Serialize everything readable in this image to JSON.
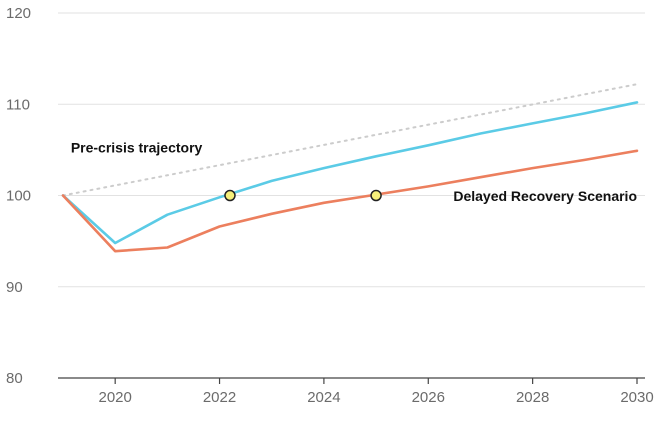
{
  "chart_data": {
    "type": "line",
    "title": "",
    "xlabel": "",
    "ylabel": "",
    "xlim": [
      2019,
      2030
    ],
    "ylim": [
      80,
      120
    ],
    "x_ticks": [
      "2020",
      "2022",
      "2024",
      "2026",
      "2028",
      "2030"
    ],
    "y_ticks": [
      "80",
      "90",
      "100",
      "110",
      "120"
    ],
    "grid": "horizontal",
    "legend": "none",
    "series": [
      {
        "key": "pre_crisis",
        "color": "#cccccc",
        "dashed": true,
        "points": [
          [
            2019,
            100
          ],
          [
            2030,
            112.2
          ]
        ]
      },
      {
        "key": "blue",
        "color": "#5bcbe6",
        "dashed": false,
        "points": [
          [
            2019,
            100
          ],
          [
            2020,
            94.8
          ],
          [
            2021,
            97.9
          ],
          [
            2022,
            99.8
          ],
          [
            2023,
            101.6
          ],
          [
            2024,
            103.0
          ],
          [
            2025,
            104.3
          ],
          [
            2026,
            105.5
          ],
          [
            2027,
            106.8
          ],
          [
            2028,
            107.9
          ],
          [
            2029,
            109.0
          ],
          [
            2030,
            110.2
          ]
        ]
      },
      {
        "key": "orange",
        "color": "#ec7f5e",
        "dashed": false,
        "points": [
          [
            2019,
            100
          ],
          [
            2020,
            93.9
          ],
          [
            2021,
            94.3
          ],
          [
            2022,
            96.6
          ],
          [
            2023,
            98.0
          ],
          [
            2024,
            99.2
          ],
          [
            2025,
            100.1
          ],
          [
            2026,
            101.0
          ],
          [
            2027,
            102.0
          ],
          [
            2028,
            103.0
          ],
          [
            2029,
            103.9
          ],
          [
            2030,
            104.9
          ]
        ]
      }
    ],
    "markers": [
      {
        "x": 2022.2,
        "y": 100,
        "color": "#f6ef7a"
      },
      {
        "x": 2025.0,
        "y": 100,
        "color": "#f6ef7a"
      }
    ],
    "annotations": [
      {
        "key": "pre_crisis_label",
        "text": "Pre-crisis trajectory",
        "x": 2019.15,
        "y": 104.7,
        "anchor": "start"
      },
      {
        "key": "delayed_label",
        "text": "Delayed Recovery Scenario",
        "x": 2030.0,
        "y": 99.4,
        "anchor": "end"
      }
    ]
  }
}
